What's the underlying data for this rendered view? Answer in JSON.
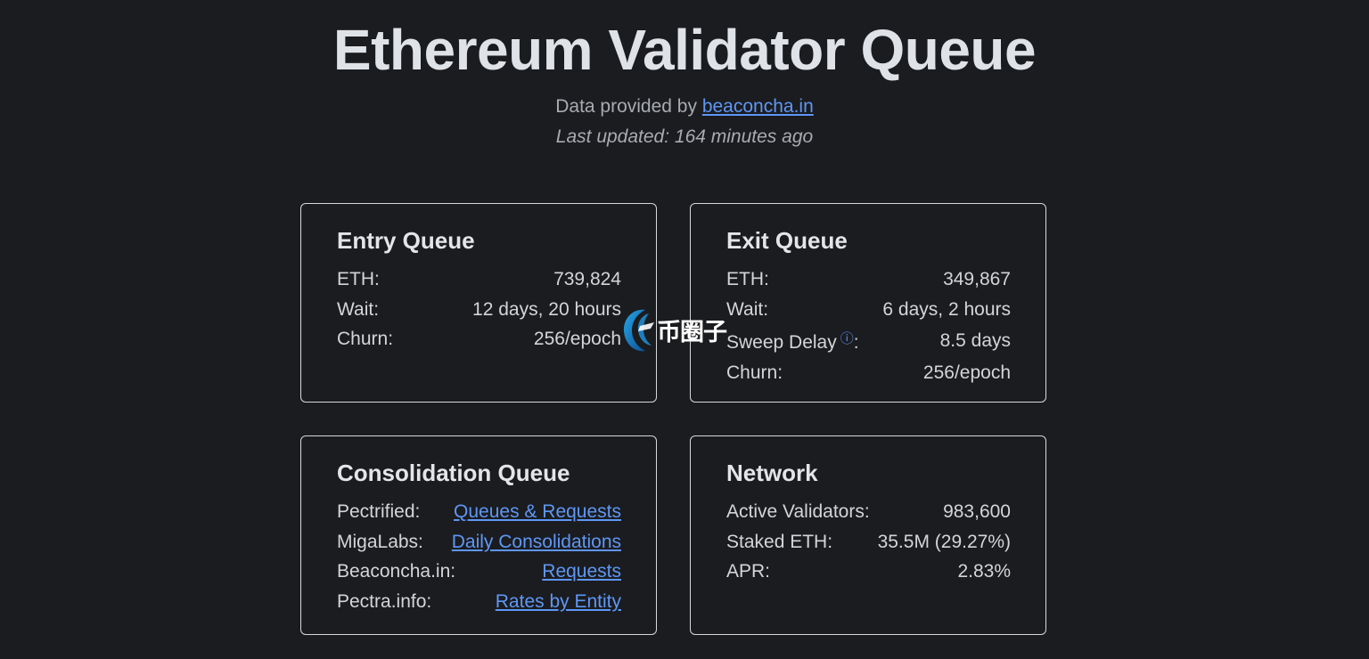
{
  "title": "Ethereum Validator Queue",
  "header": {
    "provided_prefix": "Data provided by",
    "provided_link": "beaconcha.in",
    "last_updated": "Last updated: 164 minutes ago"
  },
  "entry": {
    "title": "Entry Queue",
    "rows": [
      {
        "label": "ETH:",
        "value": "739,824"
      },
      {
        "label": "Wait:",
        "value": "12 days, 20 hours"
      },
      {
        "label": "Churn:",
        "value": "256/epoch"
      }
    ]
  },
  "exit": {
    "title": "Exit Queue",
    "rows": [
      {
        "label": "ETH:",
        "value": "349,867"
      },
      {
        "label": "Wait:",
        "value": "6 days, 2 hours"
      },
      {
        "label": "Sweep Delay",
        "label_suffix": ":",
        "value": "8.5 days",
        "info_icon": "ⓘ"
      },
      {
        "label": "Churn:",
        "value": "256/epoch"
      }
    ]
  },
  "consolidation": {
    "title": "Consolidation Queue",
    "rows": [
      {
        "label": "Pectrified:",
        "value": "Queues & Requests"
      },
      {
        "label": "MigaLabs:",
        "value": "Daily Consolidations"
      },
      {
        "label": "Beaconcha.in:",
        "value": "Requests"
      },
      {
        "label": "Pectra.info:",
        "value": "Rates by Entity"
      }
    ]
  },
  "network": {
    "title": "Network",
    "rows": [
      {
        "label": "Active Validators:",
        "value": "983,600"
      },
      {
        "label": "Staked ETH:",
        "value": "35.5M (29.27%)"
      },
      {
        "label": "APR:",
        "value": "2.83%"
      }
    ]
  },
  "watermark": {
    "text": "币圈子",
    "icon": "watermark-logo-icon"
  },
  "colors": {
    "background": "#1b1c1f",
    "link": "#5e97f6",
    "border": "#d8d8d8",
    "text": "#d3d5d9"
  }
}
